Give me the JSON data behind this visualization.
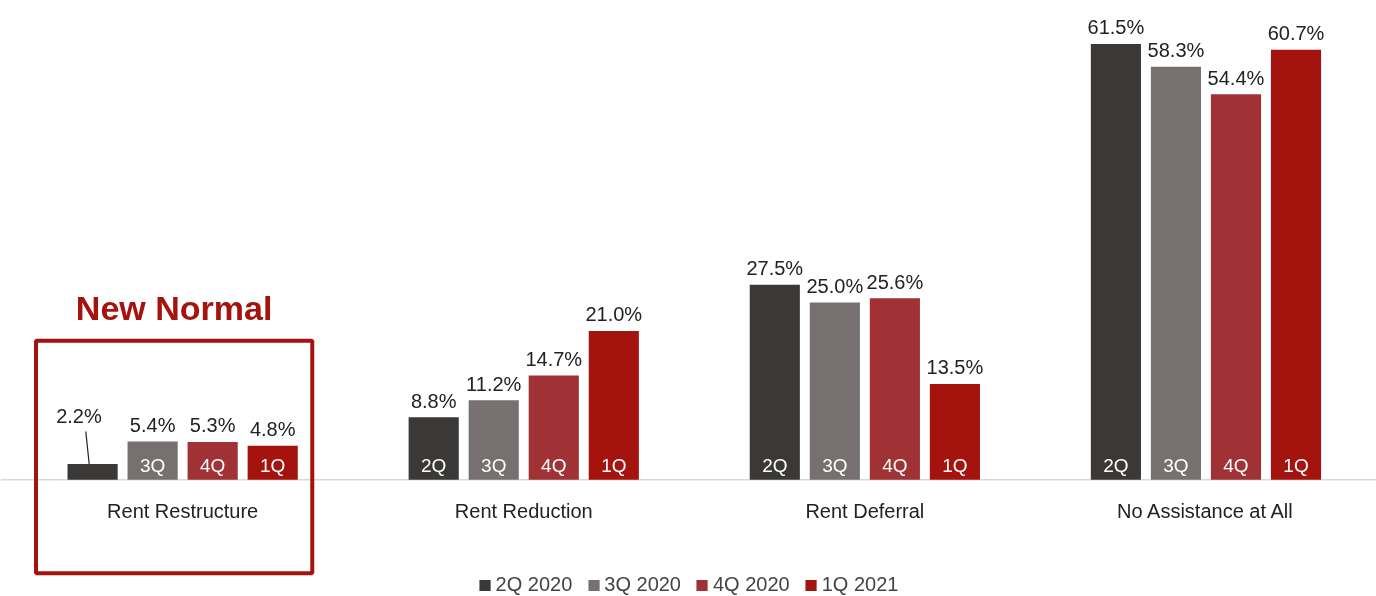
{
  "chart_data": {
    "type": "bar",
    "categories": [
      "Rent Restructure",
      "Rent Reduction",
      "Rent Deferral",
      "No Assistance at All"
    ],
    "series": [
      {
        "name": "2Q 2020",
        "color": "#3a3937",
        "values": [
          2.2,
          8.8,
          27.5,
          61.5
        ],
        "value_labels": [
          "2.2%",
          "8.8%",
          "27.5%",
          "61.5%"
        ]
      },
      {
        "name": "3Q 2020",
        "color": "#767170",
        "values": [
          5.4,
          11.2,
          25.0,
          58.3
        ],
        "value_labels": [
          "5.4%",
          "11.2%",
          "25.0%",
          "58.3%"
        ]
      },
      {
        "name": "4Q 2020",
        "color": "#a03236",
        "values": [
          5.3,
          14.7,
          25.6,
          54.4
        ],
        "value_labels": [
          "5.3%",
          "14.7%",
          "25.6%",
          "54.4%"
        ]
      },
      {
        "name": "1Q 2021",
        "color": "#a5130f",
        "values": [
          4.8,
          21.0,
          13.5,
          60.7
        ],
        "value_labels": [
          "4.8%",
          "21.0%",
          "13.5%",
          "60.7%"
        ]
      }
    ],
    "tick_labels": "x",
    "legend": "bottom",
    "grid": false,
    "annotations": [
      "New Normal",
      "3Q",
      "4Q",
      "1Q",
      "2Q",
      "3Q",
      "4Q",
      "1Q",
      "2Q",
      "3Q",
      "4Q",
      "1Q",
      "2Q",
      "3Q",
      "4Q",
      "1Q"
    ]
  }
}
